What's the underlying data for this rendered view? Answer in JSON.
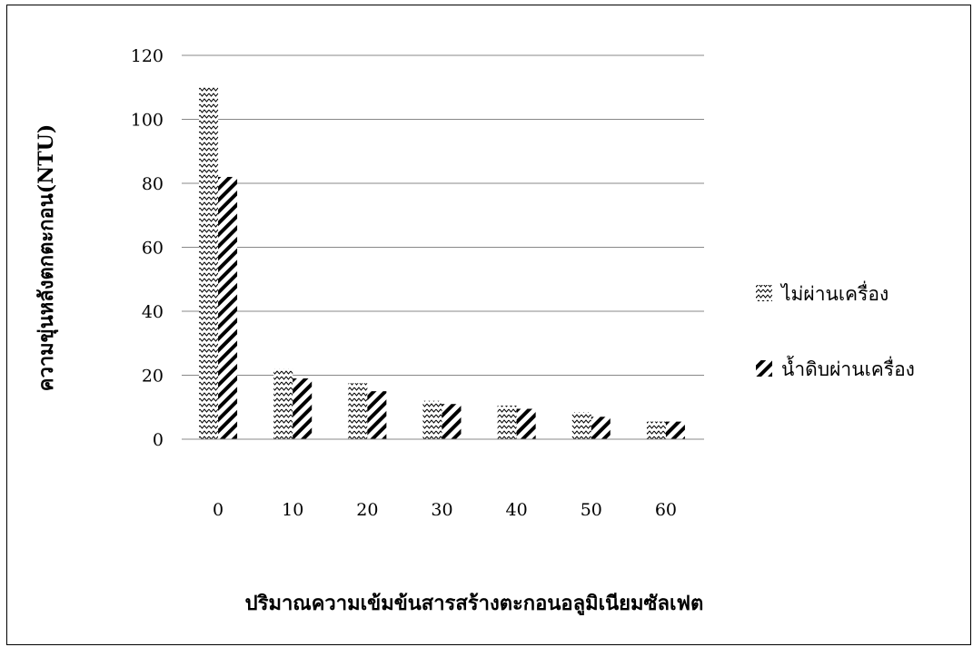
{
  "chart_data": {
    "type": "bar",
    "title": "",
    "xlabel": "ปริมาณความเข้มข้นสารสร้างตะกอนอลูมิเนียมซัลเฟต",
    "ylabel": "ความขุ่นหลังตกตะกอน(NTU)",
    "categories": [
      "0",
      "10",
      "20",
      "30",
      "40",
      "50",
      "60"
    ],
    "ylim": [
      0,
      120
    ],
    "yticks": [
      0,
      20,
      40,
      60,
      80,
      100,
      120
    ],
    "grid": true,
    "legend": "right",
    "series": [
      {
        "name": "ไม่ผ่านเครื่อง",
        "values": [
          110,
          22,
          17.5,
          12,
          10.5,
          8.5,
          5.5
        ],
        "pattern": "zigzag"
      },
      {
        "name": "น้ำดิบผ่านเครื่อง",
        "values": [
          82,
          19,
          15,
          11,
          9.5,
          7,
          5.5
        ],
        "pattern": "diagonal"
      }
    ]
  }
}
